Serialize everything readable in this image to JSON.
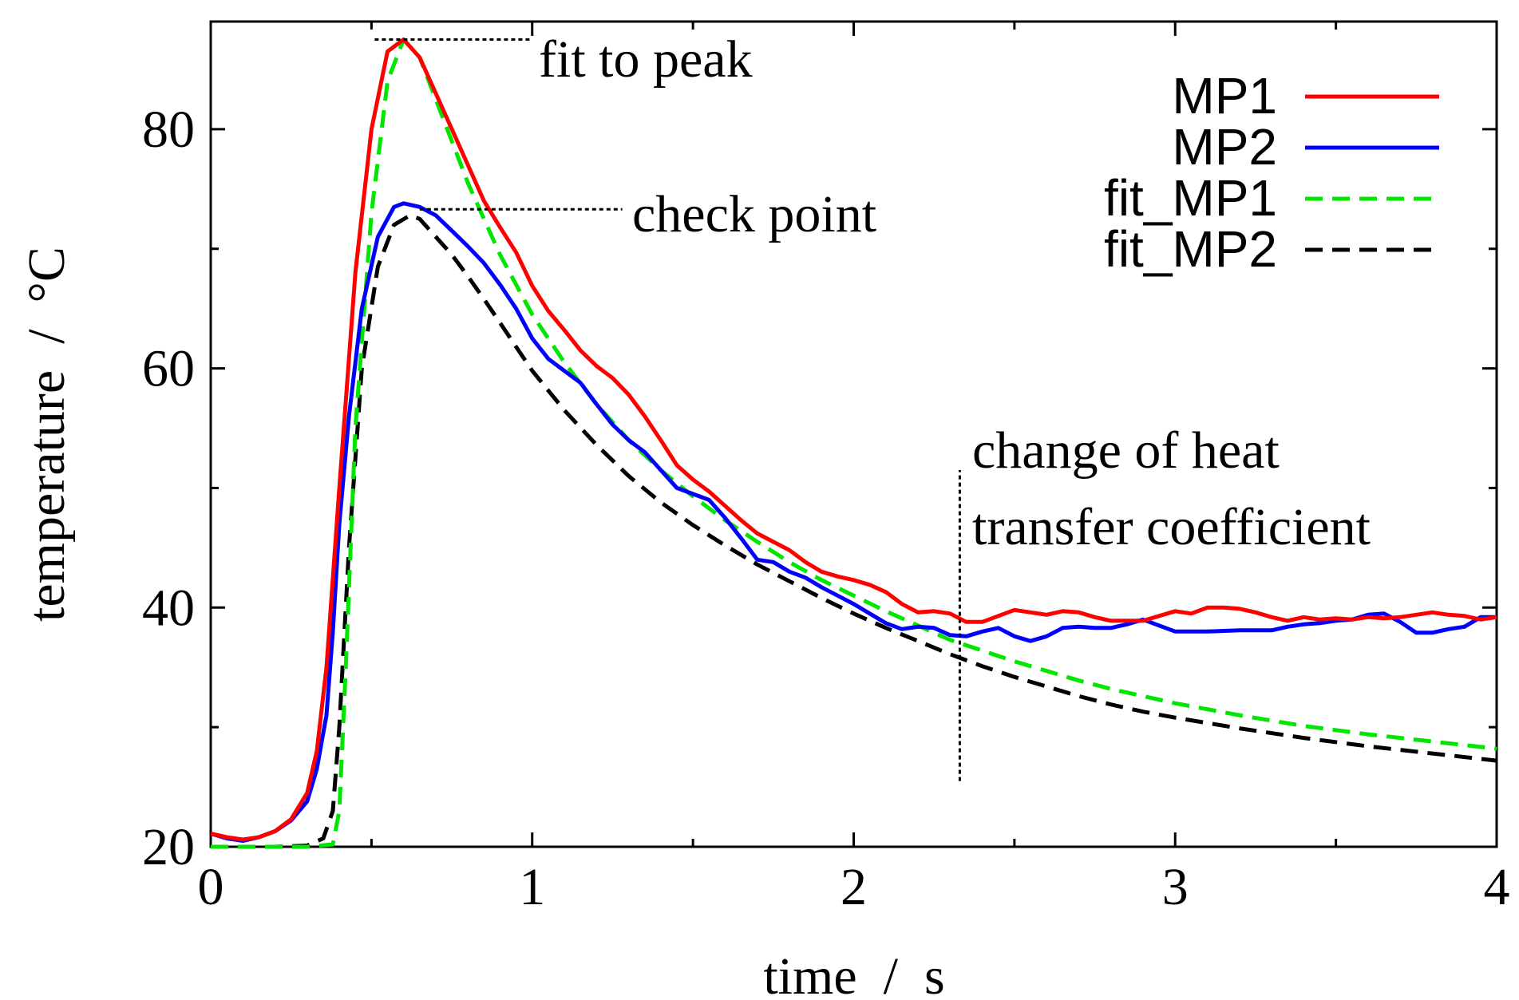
{
  "chart_data": {
    "type": "line",
    "title": "",
    "xlabel": "time  /  s",
    "ylabel": "temperature  /  °C",
    "xlim": [
      0,
      4
    ],
    "ylim": [
      20,
      89
    ],
    "x_ticks": [
      0,
      1,
      2,
      3,
      4
    ],
    "x_tick_labels": [
      "0",
      "1",
      "2",
      "3",
      "4"
    ],
    "x_minor_ticks": [
      0.5,
      1.5,
      2.5,
      3.5
    ],
    "y_ticks": [
      20,
      40,
      60,
      80
    ],
    "y_tick_labels": [
      "20",
      "40",
      "60",
      "80"
    ],
    "y_minor_ticks": [
      30,
      50,
      70
    ],
    "grid": false,
    "legend_position": "top-right",
    "series": [
      {
        "name": "MP1",
        "color": "#ff0000",
        "style": "solid",
        "points": [
          [
            0,
            21.1
          ],
          [
            0.05,
            20.8
          ],
          [
            0.1,
            20.6
          ],
          [
            0.15,
            20.8
          ],
          [
            0.2,
            21.3
          ],
          [
            0.25,
            22.3
          ],
          [
            0.3,
            24.5
          ],
          [
            0.33,
            28
          ],
          [
            0.36,
            35
          ],
          [
            0.4,
            50
          ],
          [
            0.45,
            68
          ],
          [
            0.5,
            80
          ],
          [
            0.55,
            86.5
          ],
          [
            0.6,
            87.5
          ],
          [
            0.65,
            86
          ],
          [
            0.7,
            83
          ],
          [
            0.75,
            80
          ],
          [
            0.8,
            77
          ],
          [
            0.85,
            74
          ],
          [
            0.9,
            71.8
          ],
          [
            0.95,
            69.7
          ],
          [
            1.0,
            66.9
          ],
          [
            1.05,
            64.8
          ],
          [
            1.1,
            63.2
          ],
          [
            1.15,
            61.5
          ],
          [
            1.2,
            60.2
          ],
          [
            1.25,
            59.2
          ],
          [
            1.3,
            57.8
          ],
          [
            1.35,
            56
          ],
          [
            1.4,
            54
          ],
          [
            1.45,
            51.9
          ],
          [
            1.5,
            50.7
          ],
          [
            1.55,
            49.7
          ],
          [
            1.6,
            48.5
          ],
          [
            1.65,
            47.3
          ],
          [
            1.7,
            46.2
          ],
          [
            1.75,
            45.5
          ],
          [
            1.8,
            44.8
          ],
          [
            1.85,
            43.8
          ],
          [
            1.9,
            43
          ],
          [
            1.95,
            42.6
          ],
          [
            2.0,
            42.3
          ],
          [
            2.05,
            41.9
          ],
          [
            2.1,
            41.3
          ],
          [
            2.15,
            40.3
          ],
          [
            2.2,
            39.6
          ],
          [
            2.25,
            39.7
          ],
          [
            2.3,
            39.5
          ],
          [
            2.35,
            38.8
          ],
          [
            2.4,
            38.8
          ],
          [
            2.45,
            39.3
          ],
          [
            2.5,
            39.8
          ],
          [
            2.55,
            39.6
          ],
          [
            2.6,
            39.4
          ],
          [
            2.65,
            39.7
          ],
          [
            2.7,
            39.6
          ],
          [
            2.75,
            39.2
          ],
          [
            2.8,
            38.9
          ],
          [
            2.85,
            38.9
          ],
          [
            2.9,
            38.9
          ],
          [
            2.95,
            39.3
          ],
          [
            3.0,
            39.7
          ],
          [
            3.05,
            39.5
          ],
          [
            3.1,
            40.0
          ],
          [
            3.15,
            40.0
          ],
          [
            3.2,
            39.9
          ],
          [
            3.25,
            39.6
          ],
          [
            3.3,
            39.2
          ],
          [
            3.35,
            38.9
          ],
          [
            3.4,
            39.2
          ],
          [
            3.45,
            39.0
          ],
          [
            3.5,
            39.1
          ],
          [
            3.55,
            39.0
          ],
          [
            3.6,
            39.2
          ],
          [
            3.65,
            39.1
          ],
          [
            3.7,
            39.2
          ],
          [
            3.75,
            39.4
          ],
          [
            3.8,
            39.6
          ],
          [
            3.85,
            39.4
          ],
          [
            3.9,
            39.3
          ],
          [
            3.95,
            39.0
          ],
          [
            4.0,
            39.2
          ]
        ]
      },
      {
        "name": "MP2",
        "color": "#0000ff",
        "style": "solid",
        "points": [
          [
            0,
            21.1
          ],
          [
            0.05,
            20.7
          ],
          [
            0.1,
            20.5
          ],
          [
            0.15,
            20.8
          ],
          [
            0.2,
            21.3
          ],
          [
            0.25,
            22.2
          ],
          [
            0.3,
            23.8
          ],
          [
            0.33,
            26.5
          ],
          [
            0.36,
            31
          ],
          [
            0.38,
            38
          ],
          [
            0.4,
            47
          ],
          [
            0.43,
            56
          ],
          [
            0.47,
            65
          ],
          [
            0.52,
            71
          ],
          [
            0.57,
            73.5
          ],
          [
            0.6,
            73.8
          ],
          [
            0.65,
            73.5
          ],
          [
            0.7,
            72.8
          ],
          [
            0.75,
            71.5
          ],
          [
            0.8,
            70.2
          ],
          [
            0.85,
            68.8
          ],
          [
            0.9,
            67
          ],
          [
            0.95,
            65
          ],
          [
            1.0,
            62.5
          ],
          [
            1.05,
            60.8
          ],
          [
            1.1,
            59.8
          ],
          [
            1.15,
            58.8
          ],
          [
            1.2,
            57
          ],
          [
            1.25,
            55.3
          ],
          [
            1.3,
            54
          ],
          [
            1.35,
            53
          ],
          [
            1.4,
            51.5
          ],
          [
            1.45,
            50
          ],
          [
            1.5,
            49.5
          ],
          [
            1.55,
            49
          ],
          [
            1.6,
            47.5
          ],
          [
            1.65,
            45.8
          ],
          [
            1.7,
            44
          ],
          [
            1.75,
            43.8
          ],
          [
            1.8,
            43
          ],
          [
            1.85,
            42.5
          ],
          [
            1.9,
            41.7
          ],
          [
            1.95,
            41
          ],
          [
            2.0,
            40.3
          ],
          [
            2.05,
            39.5
          ],
          [
            2.1,
            38.7
          ],
          [
            2.15,
            38.2
          ],
          [
            2.2,
            38.4
          ],
          [
            2.25,
            38.3
          ],
          [
            2.3,
            37.7
          ],
          [
            2.35,
            37.6
          ],
          [
            2.4,
            38.0
          ],
          [
            2.45,
            38.3
          ],
          [
            2.5,
            37.6
          ],
          [
            2.55,
            37.2
          ],
          [
            2.6,
            37.6
          ],
          [
            2.65,
            38.3
          ],
          [
            2.7,
            38.4
          ],
          [
            2.75,
            38.3
          ],
          [
            2.8,
            38.3
          ],
          [
            2.85,
            38.6
          ],
          [
            2.9,
            39.0
          ],
          [
            2.95,
            38.5
          ],
          [
            3.0,
            38.0
          ],
          [
            3.1,
            38.0
          ],
          [
            3.2,
            38.1
          ],
          [
            3.3,
            38.1
          ],
          [
            3.35,
            38.4
          ],
          [
            3.4,
            38.6
          ],
          [
            3.45,
            38.7
          ],
          [
            3.5,
            38.9
          ],
          [
            3.55,
            39.0
          ],
          [
            3.6,
            39.4
          ],
          [
            3.65,
            39.5
          ],
          [
            3.7,
            38.8
          ],
          [
            3.75,
            37.9
          ],
          [
            3.8,
            37.9
          ],
          [
            3.85,
            38.2
          ],
          [
            3.9,
            38.4
          ],
          [
            3.95,
            39.2
          ],
          [
            4.0,
            39.2
          ]
        ]
      },
      {
        "name": "fit_MP1",
        "color": "#00e600",
        "style": "dashed",
        "points": [
          [
            0,
            20
          ],
          [
            0.1,
            20
          ],
          [
            0.2,
            20
          ],
          [
            0.3,
            20
          ],
          [
            0.38,
            20.2
          ],
          [
            0.4,
            23
          ],
          [
            0.42,
            35
          ],
          [
            0.45,
            55
          ],
          [
            0.5,
            73
          ],
          [
            0.55,
            84
          ],
          [
            0.6,
            87.5
          ],
          [
            0.65,
            86
          ],
          [
            0.7,
            82.5
          ],
          [
            0.75,
            79
          ],
          [
            0.8,
            75.5
          ],
          [
            0.85,
            72.5
          ],
          [
            0.9,
            69.5
          ],
          [
            0.95,
            67
          ],
          [
            1.0,
            64.5
          ],
          [
            1.1,
            60.5
          ],
          [
            1.2,
            57
          ],
          [
            1.3,
            54
          ],
          [
            1.4,
            51.5
          ],
          [
            1.5,
            49.3
          ],
          [
            1.6,
            47.3
          ],
          [
            1.7,
            45.5
          ],
          [
            1.8,
            43.8
          ],
          [
            1.9,
            42.3
          ],
          [
            2.0,
            41
          ],
          [
            2.1,
            39.7
          ],
          [
            2.2,
            38.5
          ],
          [
            2.3,
            37.3
          ],
          [
            2.4,
            36.4
          ],
          [
            2.5,
            35.5
          ],
          [
            2.6,
            34.7
          ],
          [
            2.7,
            33.9
          ],
          [
            2.8,
            33.2
          ],
          [
            2.9,
            32.6
          ],
          [
            3.0,
            32
          ],
          [
            3.2,
            31
          ],
          [
            3.4,
            30.1
          ],
          [
            3.6,
            29.4
          ],
          [
            3.8,
            28.8
          ],
          [
            4.0,
            28.2
          ]
        ]
      },
      {
        "name": "fit_MP2",
        "color": "#000000",
        "style": "dashed",
        "points": [
          [
            0,
            20
          ],
          [
            0.1,
            20
          ],
          [
            0.2,
            20
          ],
          [
            0.3,
            20.1
          ],
          [
            0.35,
            20.7
          ],
          [
            0.38,
            23
          ],
          [
            0.4,
            30
          ],
          [
            0.43,
            45
          ],
          [
            0.47,
            60
          ],
          [
            0.52,
            68.5
          ],
          [
            0.57,
            72
          ],
          [
            0.62,
            72.8
          ],
          [
            0.65,
            72.5
          ],
          [
            0.7,
            71
          ],
          [
            0.75,
            69.5
          ],
          [
            0.8,
            67.7
          ],
          [
            0.85,
            65.8
          ],
          [
            0.9,
            63.8
          ],
          [
            0.95,
            61.8
          ],
          [
            1.0,
            59.8
          ],
          [
            1.1,
            56.5
          ],
          [
            1.2,
            53.6
          ],
          [
            1.3,
            51
          ],
          [
            1.4,
            48.8
          ],
          [
            1.5,
            46.9
          ],
          [
            1.6,
            45.2
          ],
          [
            1.7,
            43.6
          ],
          [
            1.8,
            42.2
          ],
          [
            1.9,
            40.8
          ],
          [
            2.0,
            39.5
          ],
          [
            2.1,
            38.3
          ],
          [
            2.2,
            37.2
          ],
          [
            2.3,
            36.1
          ],
          [
            2.4,
            35.1
          ],
          [
            2.5,
            34.2
          ],
          [
            2.6,
            33.4
          ],
          [
            2.7,
            32.6
          ],
          [
            2.8,
            31.9
          ],
          [
            2.9,
            31.3
          ],
          [
            3.0,
            30.8
          ],
          [
            3.2,
            29.9
          ],
          [
            3.4,
            29.1
          ],
          [
            3.6,
            28.4
          ],
          [
            3.8,
            27.8
          ],
          [
            4.0,
            27.2
          ]
        ]
      }
    ],
    "annotations": [
      {
        "id": "fit-to-peak",
        "text": "fit to peak",
        "leader_x": [
          0.51,
          1.0
        ],
        "leader_y": 87.5
      },
      {
        "id": "check-point",
        "text": "check point",
        "leader_x": [
          0.65,
          1.28
        ],
        "leader_y": 73.3
      },
      {
        "id": "heat-change",
        "lines": [
          "change of heat",
          "transfer coefficient"
        ],
        "line_x": 2.33,
        "line_y": [
          25.5,
          51.5
        ]
      }
    ]
  }
}
